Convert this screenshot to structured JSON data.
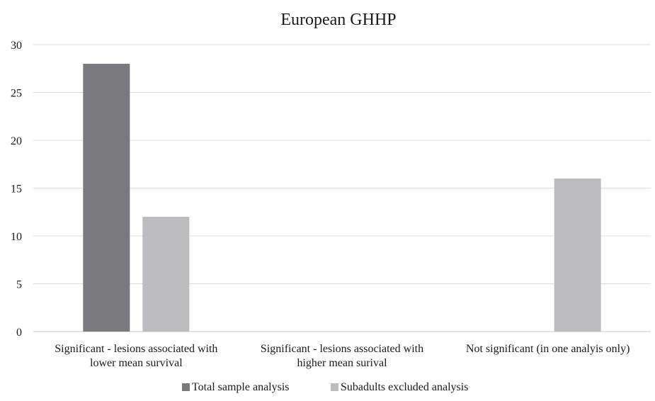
{
  "chart_data": {
    "type": "bar",
    "title": "European GHHP",
    "categories": [
      [
        "Significant - lesions associated with",
        "lower mean survival"
      ],
      [
        "Significant - lesions associated with",
        "higher mean surival"
      ],
      [
        "Not significant (in one analyis only)"
      ]
    ],
    "series": [
      {
        "name": "Total sample analysis",
        "values": [
          28,
          0,
          0
        ],
        "color": "#7a7a7e"
      },
      {
        "name": "Subadults excluded analysis",
        "values": [
          12,
          0,
          16
        ],
        "color": "#bcbcc0"
      }
    ],
    "ylim": [
      0,
      30
    ],
    "yticks": [
      0,
      5,
      10,
      15,
      20,
      25,
      30
    ],
    "grid": true,
    "legend_position": "bottom"
  }
}
